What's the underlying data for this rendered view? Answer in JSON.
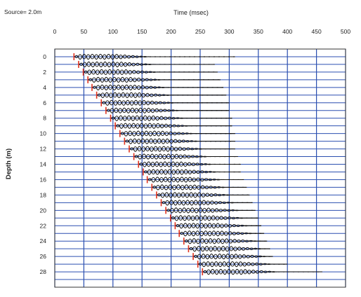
{
  "chart_data": {
    "type": "line",
    "annotation": "Source= 2.0m",
    "xlabel": "Time (msec)",
    "ylabel": "Depth (m)",
    "xlim": [
      0,
      500
    ],
    "ylim": [
      -1,
      30
    ],
    "x_ticks": [
      0,
      50,
      100,
      150,
      200,
      250,
      300,
      350,
      400,
      450,
      500
    ],
    "y_ticks": [
      0,
      2,
      4,
      6,
      8,
      10,
      12,
      14,
      16,
      18,
      20,
      22,
      24,
      26,
      28
    ],
    "x_axis_position": "top",
    "grid": true,
    "trace_depths": [
      0,
      1,
      2,
      3,
      4,
      5,
      6,
      7,
      8,
      9,
      10,
      11,
      12,
      13,
      14,
      15,
      16,
      17,
      18,
      19,
      20,
      21,
      22,
      23,
      24,
      25,
      26,
      27,
      28
    ],
    "first_arrival_times": [
      33,
      41,
      49,
      57,
      64,
      72,
      80,
      88,
      96,
      104,
      112,
      120,
      128,
      136,
      144,
      152,
      159,
      167,
      175,
      183,
      191,
      199,
      207,
      214,
      222,
      230,
      238,
      246,
      254
    ],
    "trace_end_times": [
      310,
      275,
      280,
      285,
      290,
      295,
      300,
      300,
      305,
      305,
      310,
      310,
      310,
      315,
      320,
      320,
      325,
      330,
      335,
      340,
      345,
      350,
      355,
      360,
      365,
      370,
      375,
      400,
      460
    ],
    "colors": {
      "grid": "#2b4fb0",
      "trace": "#111111",
      "first_arrival": "#e0321e"
    }
  }
}
